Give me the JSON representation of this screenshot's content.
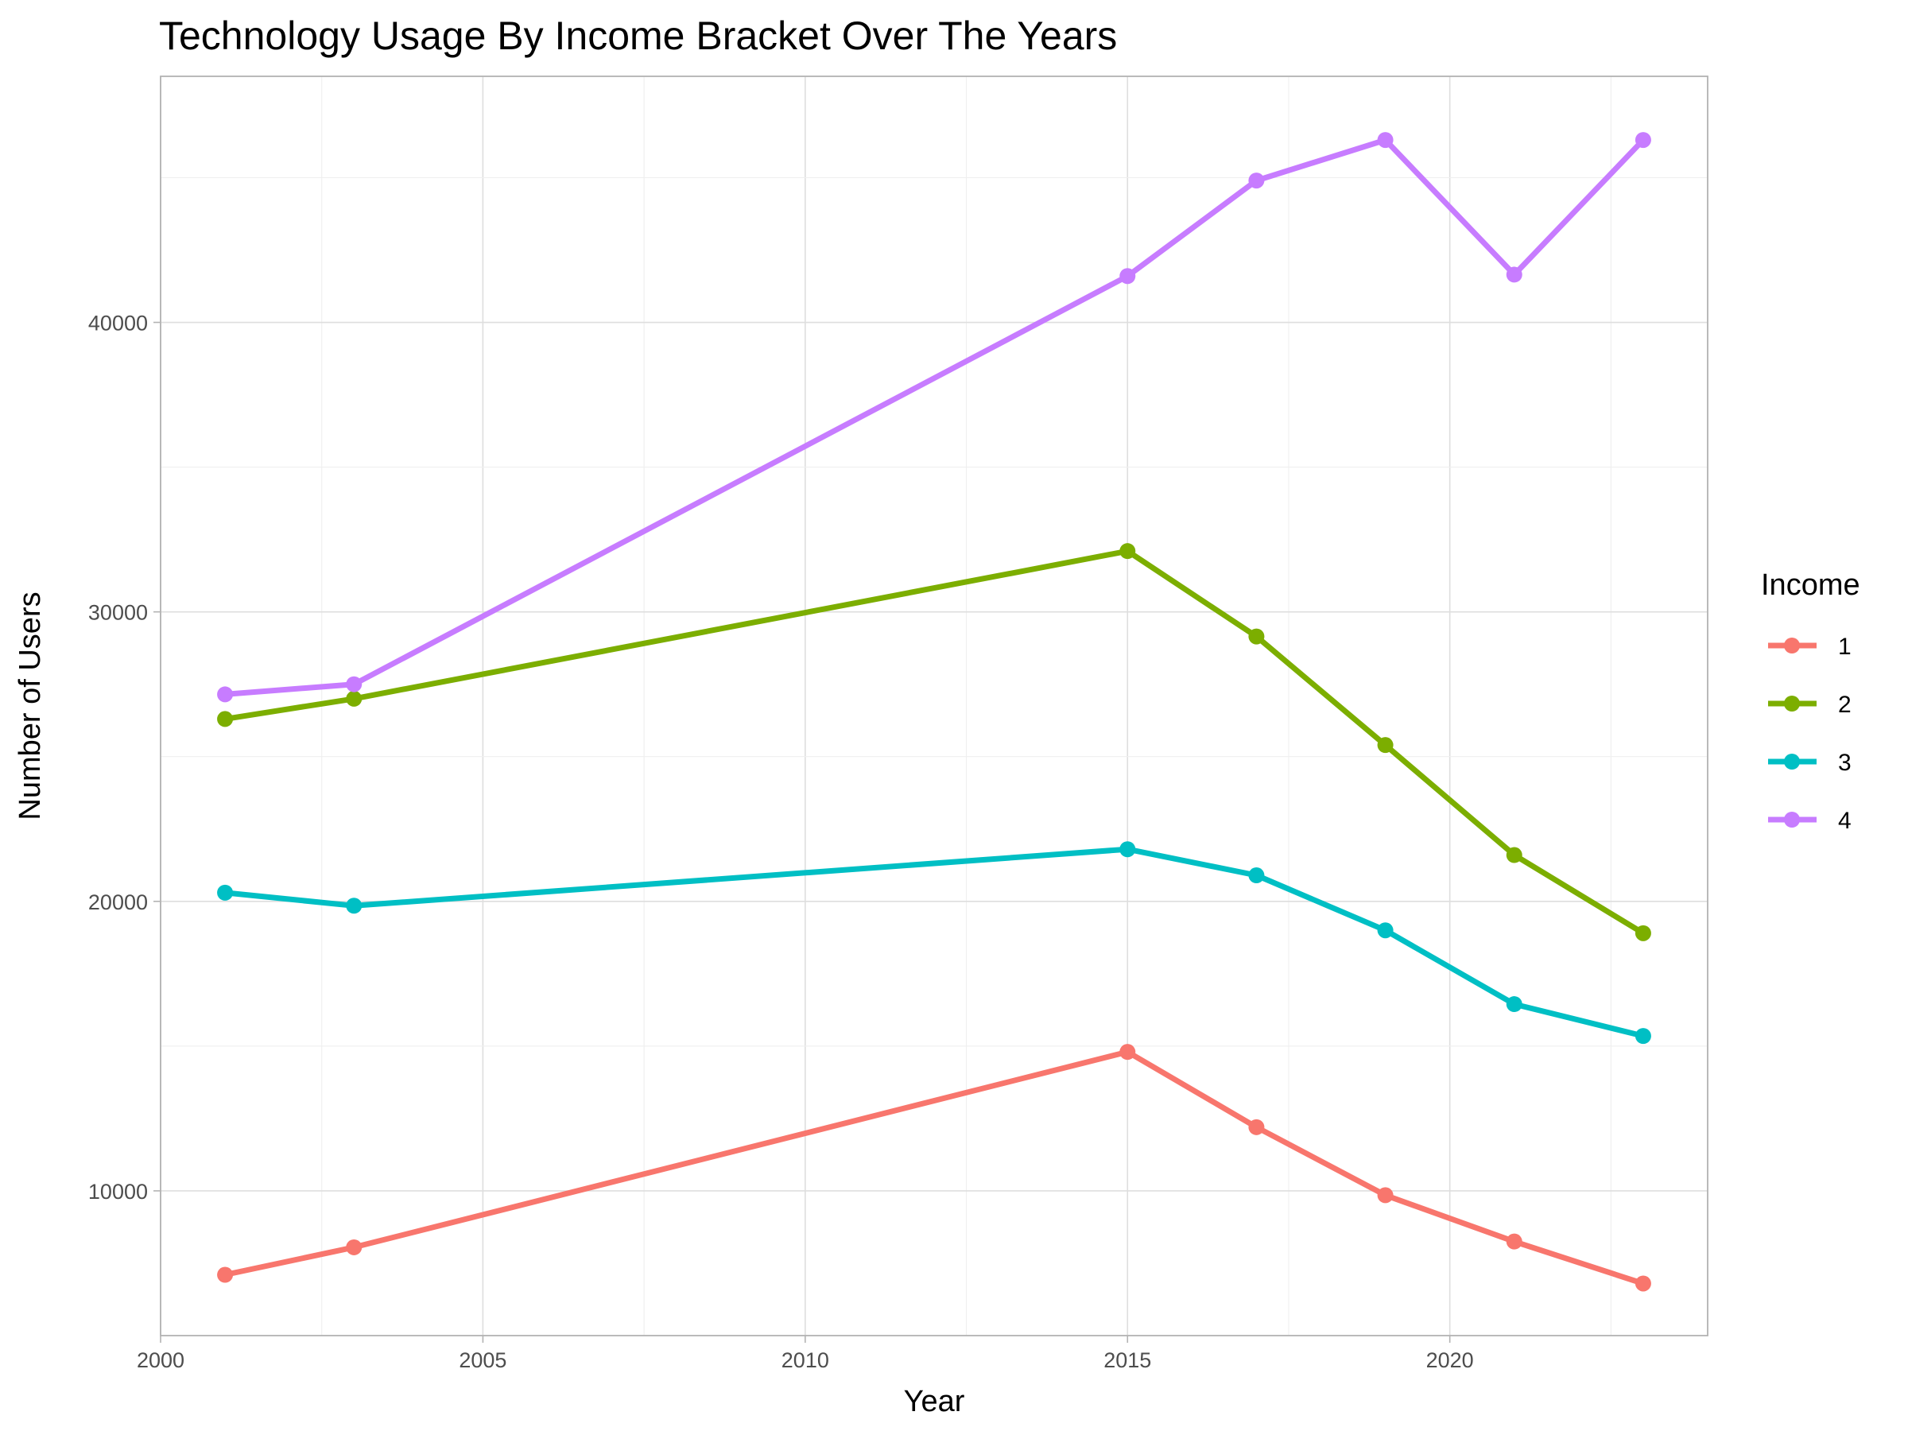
{
  "chart_data": {
    "type": "line",
    "title": "Technology Usage By Income Bracket Over The Years",
    "xlabel": "Year",
    "ylabel": "Number of Users",
    "x": [
      2001,
      2003,
      2015,
      2017,
      2019,
      2021,
      2023
    ],
    "xlim": [
      2000,
      2024
    ],
    "ylim": [
      5000,
      48500
    ],
    "x_ticks": [
      2000,
      2005,
      2010,
      2015,
      2020
    ],
    "y_ticks": [
      10000,
      20000,
      30000,
      40000
    ],
    "grid": true,
    "legend": {
      "title": "Income",
      "position": "right"
    },
    "series": [
      {
        "name": "1",
        "color": "#F8766D",
        "values": [
          7100,
          8050,
          14800,
          12200,
          9850,
          8250,
          6800
        ]
      },
      {
        "name": "2",
        "color": "#7CAE00",
        "values": [
          26300,
          27000,
          32100,
          29150,
          25400,
          21600,
          18900
        ]
      },
      {
        "name": "3",
        "color": "#00BFC4",
        "values": [
          20300,
          19850,
          21800,
          20900,
          19000,
          16450,
          15350
        ]
      },
      {
        "name": "4",
        "color": "#C77CFF",
        "values": [
          27150,
          27500,
          41600,
          44900,
          46300,
          41650,
          46300
        ]
      }
    ]
  }
}
